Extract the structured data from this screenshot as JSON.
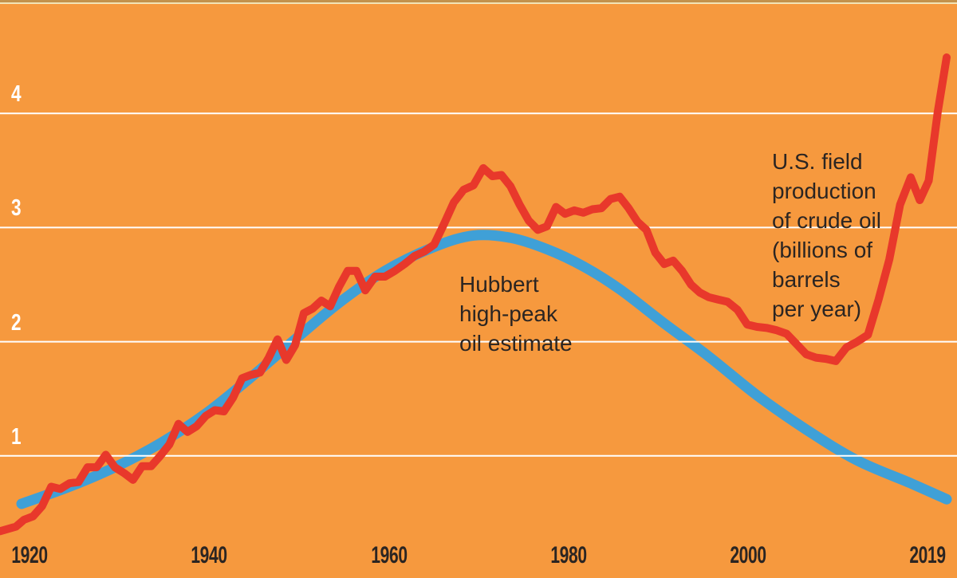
{
  "colors": {
    "background": "#F6993E",
    "top_border": "#C3924C",
    "top_border_inner": "#F2E4B6",
    "grid_line": "#FFFFFF",
    "y_axis_label": "#FFFFFF",
    "x_axis_label": "#2B2522",
    "annotation_text": "#2B2522",
    "production_line": "#E8382B",
    "hubbert_curve": "#3FA0D7"
  },
  "annotations": {
    "hubbert": "Hubbert\nhigh-peak\noil estimate",
    "production": "U.S. field\nproduction\nof crude oil\n(billions of\nbarrels\nper year)"
  },
  "chart_data": {
    "type": "line",
    "title": "",
    "xlabel": "",
    "ylabel": "billions of barrels per year",
    "x_axis": {
      "tick_labels": [
        "1920",
        "1940",
        "1960",
        "1980",
        "2000",
        "2019"
      ],
      "range_years": [
        1917,
        2019
      ]
    },
    "y_axis": {
      "ticks": [
        1,
        2,
        3,
        4
      ],
      "range": [
        0,
        4.7
      ],
      "gridlines": true
    },
    "series": [
      {
        "name": "U.S. field production of crude oil (billions of barrels per year)",
        "style": "jagged-line",
        "color": "#E8382B",
        "stroke_width": 10,
        "start_year": 1917,
        "step_years": 1,
        "values": [
          0.34,
          0.36,
          0.38,
          0.44,
          0.47,
          0.56,
          0.73,
          0.71,
          0.76,
          0.77,
          0.9,
          0.9,
          1.01,
          0.9,
          0.85,
          0.79,
          0.91,
          0.91,
          1.0,
          1.1,
          1.28,
          1.21,
          1.26,
          1.35,
          1.4,
          1.39,
          1.51,
          1.68,
          1.71,
          1.73,
          1.86,
          2.02,
          1.84,
          1.97,
          2.25,
          2.29,
          2.36,
          2.31,
          2.48,
          2.62,
          2.62,
          2.45,
          2.57,
          2.57,
          2.62,
          2.68,
          2.75,
          2.79,
          2.85,
          3.03,
          3.22,
          3.33,
          3.37,
          3.52,
          3.45,
          3.46,
          3.36,
          3.2,
          3.06,
          2.98,
          3.01,
          3.18,
          3.12,
          3.15,
          3.13,
          3.16,
          3.17,
          3.25,
          3.27,
          3.17,
          3.05,
          2.98,
          2.78,
          2.68,
          2.71,
          2.62,
          2.5,
          2.43,
          2.39,
          2.37,
          2.35,
          2.28,
          2.15,
          2.13,
          2.12,
          2.1,
          2.07,
          1.98,
          1.89,
          1.86,
          1.85,
          1.83,
          1.95,
          2.0,
          2.06,
          2.37,
          2.72,
          3.2,
          3.44,
          3.24,
          3.41,
          4.01,
          4.49
        ]
      },
      {
        "name": "Hubbert high-peak oil estimate",
        "style": "smooth-bell-curve",
        "color": "#3FA0D7",
        "stroke_width": 13,
        "points": [
          [
            1919.7,
            0.58
          ],
          [
            1925,
            0.73
          ],
          [
            1930,
            0.9
          ],
          [
            1935,
            1.11
          ],
          [
            1940,
            1.37
          ],
          [
            1945,
            1.69
          ],
          [
            1950,
            2.02
          ],
          [
            1955,
            2.34
          ],
          [
            1960,
            2.62
          ],
          [
            1965,
            2.83
          ],
          [
            1969,
            2.93
          ],
          [
            1973,
            2.91
          ],
          [
            1977,
            2.81
          ],
          [
            1981,
            2.66
          ],
          [
            1985,
            2.46
          ],
          [
            1990,
            2.16
          ],
          [
            1995,
            1.87
          ],
          [
            2000,
            1.53
          ],
          [
            2005,
            1.23
          ],
          [
            2010,
            0.96
          ],
          [
            2015,
            0.76
          ],
          [
            2019.4,
            0.62
          ]
        ]
      }
    ]
  }
}
